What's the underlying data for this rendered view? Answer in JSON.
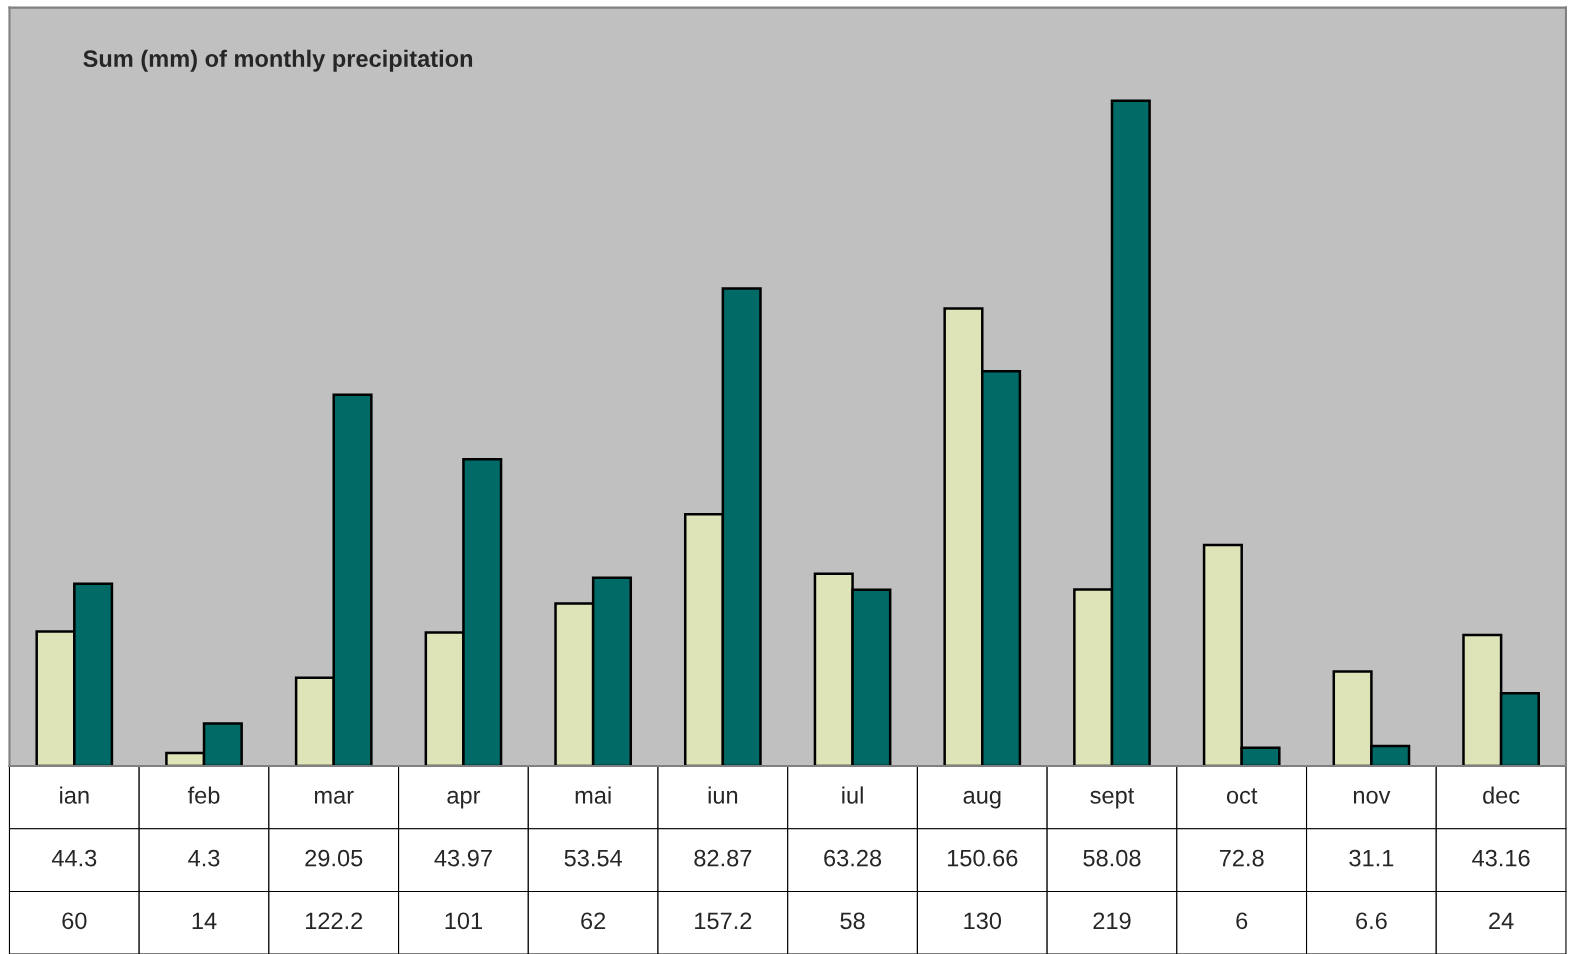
{
  "chart_data": {
    "type": "bar",
    "title": "Sum (mm) of monthly precipitation",
    "categories": [
      "ian",
      "feb",
      "mar",
      "apr",
      "mai",
      "iun",
      "iul",
      "aug",
      "sept",
      "oct",
      "nov",
      "dec"
    ],
    "series": [
      {
        "color": "#dfe3b8",
        "values": [
          44.3,
          4.3,
          29.05,
          43.97,
          53.54,
          82.87,
          63.28,
          150.66,
          58.08,
          72.8,
          31.1,
          43.16
        ]
      },
      {
        "color": "#006a66",
        "values": [
          60,
          14,
          122.2,
          101,
          62,
          157.2,
          58,
          130,
          219,
          6,
          6.6,
          24
        ]
      }
    ],
    "data_labels": true
  }
}
